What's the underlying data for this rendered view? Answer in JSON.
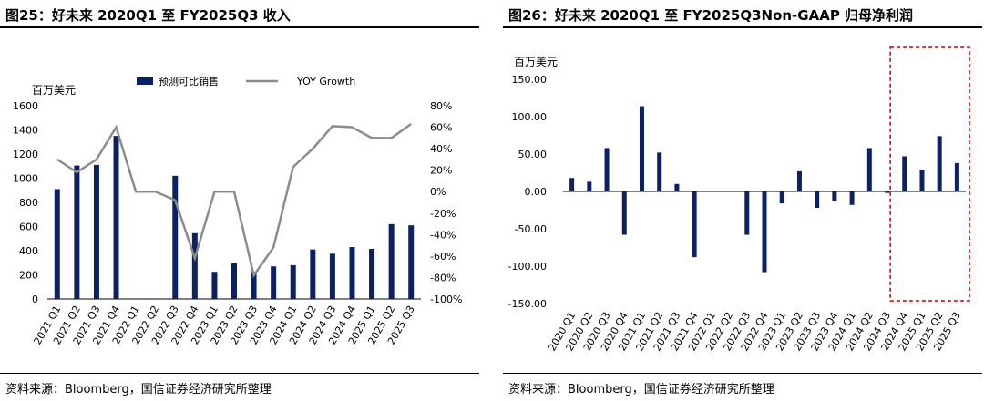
{
  "colors": {
    "bar": "#0b2163",
    "line": "#8c8c8c",
    "highlight": "#c00000"
  },
  "chart_data": [
    {
      "type": "bar",
      "title": "图25：好未来 2020Q1 至 FY2025Q3 收入",
      "ylabel": "百万美元",
      "categories": [
        "2021 Q1",
        "2021 Q2",
        "2021 Q3",
        "2021 Q4",
        "2022 Q1",
        "2022 Q2",
        "2022 Q3",
        "2022 Q4",
        "2023 Q1",
        "2023 Q2",
        "2023 Q3",
        "2023 Q4",
        "2024 Q1",
        "2024 Q2",
        "2024 Q3",
        "2024 Q4",
        "2025 Q1",
        "2025 Q2",
        "2025 Q3"
      ],
      "y_ticks": [
        "0",
        "200",
        "400",
        "600",
        "800",
        "1000",
        "1200",
        "1400",
        "1600"
      ],
      "y2_ticks": [
        "-100%",
        "-80%",
        "-60%",
        "-40%",
        "-20%",
        "0%",
        "20%",
        "40%",
        "60%",
        "80%"
      ],
      "ylim": [
        0,
        1600
      ],
      "y2lim": [
        -100,
        80
      ],
      "legend": [
        "预测可比销售",
        "YOY Growth"
      ],
      "legend_position": "top",
      "series": [
        {
          "name": "预测可比销售",
          "type": "bar",
          "values": [
            910,
            1105,
            1110,
            1350,
            null,
            null,
            1020,
            545,
            225,
            295,
            225,
            270,
            280,
            410,
            375,
            430,
            415,
            620,
            610
          ]
        },
        {
          "name": "YOY Growth",
          "type": "line",
          "axis": "right",
          "values": [
            30,
            18,
            30,
            60,
            0,
            0,
            -8,
            -62,
            0,
            0,
            -78,
            -52,
            23,
            40,
            61,
            60,
            50,
            50,
            63
          ]
        }
      ]
    },
    {
      "type": "bar",
      "title": "图26：好未来 2020Q1 至 FY2025Q3Non-GAAP 归母净利润",
      "ylabel": "百万美元",
      "categories": [
        "2020 Q1",
        "2020 Q2",
        "2020 Q3",
        "2020 Q4",
        "2021 Q1",
        "2021 Q2",
        "2021 Q3",
        "2021 Q4",
        "2022 Q1",
        "2022 Q2",
        "2022 Q3",
        "2022 Q4",
        "2023 Q1",
        "2023 Q2",
        "2023 Q3",
        "2023 Q4",
        "2024 Q1",
        "2024 Q2",
        "2024 Q3",
        "2024 Q4",
        "2025 Q1",
        "2025 Q2",
        "2025 Q3"
      ],
      "y_ticks": [
        "-150.00",
        "-100.00",
        "-50.00",
        "0.00",
        "50.00",
        "100.00",
        "150.00"
      ],
      "ylim": [
        -150,
        150
      ],
      "highlight_range": [
        "2024 Q4",
        "2025 Q3"
      ],
      "series": [
        {
          "name": "",
          "type": "bar",
          "values": [
            18,
            13,
            58,
            -58,
            114,
            52,
            10,
            -88,
            0,
            0,
            -58,
            -108,
            -16,
            27,
            -22,
            -13,
            -18,
            58,
            -2,
            47,
            29,
            74,
            38
          ]
        }
      ]
    }
  ],
  "source1": "资料来源：Bloomberg，国信证券经济研究所整理",
  "source2": "资料来源：Bloomberg，国信证券经济研究所整理"
}
